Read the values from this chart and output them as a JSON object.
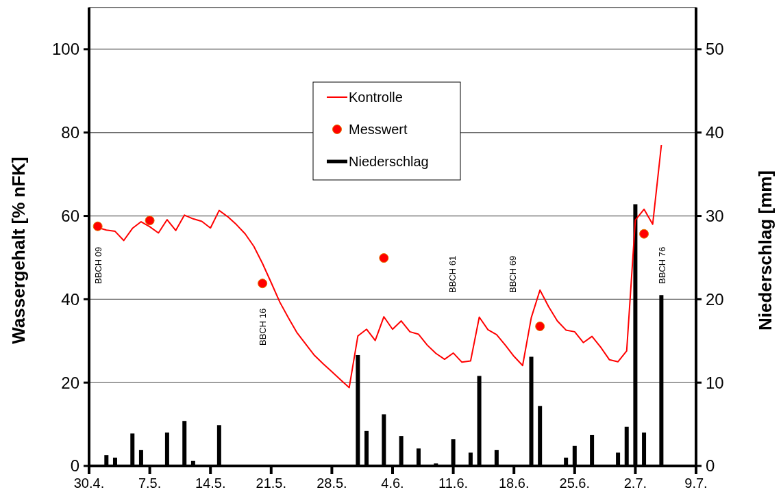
{
  "chart_data": {
    "type": "line",
    "ylabel": "Wassergehalt [% nFK]",
    "y2label": "Niederschlag [mm]",
    "xlim": [
      "--04-30",
      "--07-09"
    ],
    "xticks": [
      {
        "value": "--04-30",
        "label": "30.4."
      },
      {
        "value": "--05-07",
        "label": "7.5."
      },
      {
        "value": "--05-14",
        "label": "14.5."
      },
      {
        "value": "--05-21",
        "label": "21.5."
      },
      {
        "value": "--05-28",
        "label": "28.5."
      },
      {
        "value": "--06-04",
        "label": "4.6."
      },
      {
        "value": "--06-11",
        "label": "11.6."
      },
      {
        "value": "--06-18",
        "label": "18.6."
      },
      {
        "value": "--06-25",
        "label": "25.6."
      },
      {
        "value": "--07-02",
        "label": "2.7."
      },
      {
        "value": "--07-09",
        "label": "9.7."
      }
    ],
    "ylim": [
      0,
      110
    ],
    "yticks": [
      0,
      20,
      40,
      60,
      80,
      100
    ],
    "y2lim": [
      0,
      55
    ],
    "y2ticks": [
      0,
      10,
      20,
      30,
      40,
      50
    ],
    "grid": "y",
    "legend": "top",
    "series": [
      {
        "name": "Niederschlag",
        "type": "bar",
        "axis": "y2",
        "color": "#000000",
        "x": [
          "--05-02",
          "--05-03",
          "--05-05",
          "--05-06",
          "--05-09",
          "--05-11",
          "--05-12",
          "--05-15",
          "--05-31",
          "--06-01",
          "--06-03",
          "--06-05",
          "--06-06",
          "--06-07",
          "--06-09",
          "--06-11",
          "--06-13",
          "--06-14",
          "--06-16",
          "--06-20",
          "--06-21",
          "--06-24",
          "--06-25",
          "--06-27",
          "--06-30",
          "--07-01",
          "--07-02",
          "--07-03",
          "--07-05"
        ],
        "values": [
          1.3,
          1.0,
          3.9,
          1.9,
          4.0,
          5.4,
          0.6,
          4.9,
          13.3,
          4.2,
          6.2,
          3.6,
          0.1,
          2.1,
          0.3,
          3.2,
          1.6,
          10.8,
          1.9,
          13.1,
          7.2,
          1.0,
          2.4,
          3.7,
          1.6,
          4.7,
          31.4,
          4.0,
          20.5
        ]
      },
      {
        "name": "Kontrolle",
        "color": "#ff0000",
        "marker": "none",
        "line_style": "solid",
        "x": [
          "--05-01",
          "--05-02",
          "--05-03",
          "--05-04",
          "--05-05",
          "--05-06",
          "--05-07",
          "--05-08",
          "--05-09",
          "--05-10",
          "--05-11",
          "--05-12",
          "--05-13",
          "--05-14",
          "--05-15",
          "--05-16",
          "--05-17",
          "--05-18",
          "--05-19",
          "--05-20",
          "--05-21",
          "--05-22",
          "--05-23",
          "--05-24",
          "--05-25",
          "--05-26",
          "--05-27",
          "--05-28",
          "--05-29",
          "--05-30",
          "--05-31",
          "--06-01",
          "--06-02",
          "--06-03",
          "--06-04",
          "--06-05",
          "--06-06",
          "--06-07",
          "--06-08",
          "--06-09",
          "--06-10",
          "--06-11",
          "--06-12",
          "--06-13",
          "--06-14",
          "--06-15",
          "--06-16",
          "--06-17",
          "--06-18",
          "--06-19",
          "--06-20",
          "--06-21",
          "--06-22",
          "--06-23",
          "--06-24",
          "--06-25",
          "--06-26",
          "--06-27",
          "--06-28",
          "--06-29",
          "--06-30",
          "--07-01",
          "--07-02",
          "--07-03",
          "--07-04",
          "--07-05"
        ],
        "values": [
          57.2,
          56.6,
          56.3,
          54.1,
          57.0,
          58.6,
          57.4,
          55.9,
          59.1,
          56.5,
          60.2,
          59.3,
          58.7,
          57.1,
          61.3,
          59.8,
          57.9,
          55.7,
          52.7,
          48.6,
          44.0,
          39.3,
          35.5,
          31.9,
          29.2,
          26.5,
          24.5,
          22.6,
          20.7,
          18.8,
          31.2,
          32.8,
          30.1,
          35.8,
          32.8,
          34.8,
          32.2,
          31.6,
          29.0,
          27.0,
          25.6,
          27.1,
          24.9,
          25.2,
          35.7,
          32.7,
          31.5,
          29.0,
          26.3,
          24.1,
          35.6,
          42.2,
          38.2,
          34.8,
          32.6,
          32.2,
          29.6,
          31.1,
          28.5,
          25.5,
          25.0,
          27.6,
          59.0,
          61.6,
          58.0,
          77.0
        ]
      },
      {
        "name": "Messwert",
        "type": "scatter",
        "color": "#ff0000",
        "marker": "circle",
        "x": [
          "--05-01",
          "--05-07",
          "--05-20",
          "--06-03",
          "--06-21",
          "--07-03"
        ],
        "values": [
          57.5,
          58.9,
          43.8,
          49.9,
          33.5,
          55.7
        ]
      }
    ],
    "annotations": [
      "BBCH 09",
      "BBCH 16",
      "BBCH 61",
      "BBCH 69",
      "BBCH 76"
    ]
  }
}
